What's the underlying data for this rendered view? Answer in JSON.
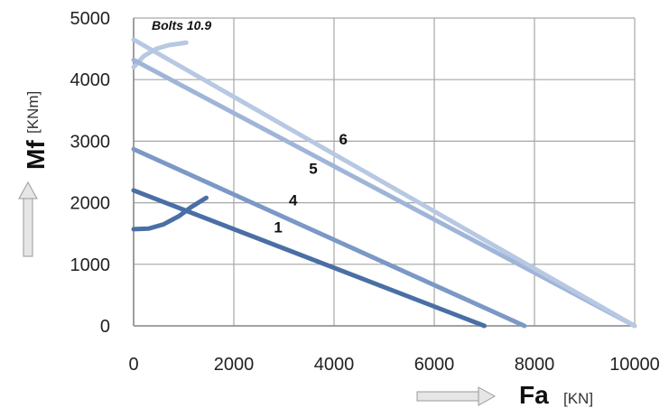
{
  "chart_data": {
    "type": "line",
    "xlabel": "Fa",
    "xlabel_unit": "[KN]",
    "ylabel": "Mf",
    "ylabel_unit": "[KNm]",
    "xlim": [
      0,
      10000
    ],
    "ylim": [
      0,
      5000
    ],
    "x_ticks": [
      "0",
      "2000",
      "4000",
      "6000",
      "8000",
      "10000"
    ],
    "y_ticks": [
      "0",
      "1000",
      "2000",
      "3000",
      "4000",
      "5000"
    ],
    "grid": true,
    "annotation": "Bolts 10.9",
    "colors": {
      "s1": "#4a6fa5",
      "s4": "#7b98c6",
      "s5": "#9fb5d8",
      "s6": "#b7c8e3",
      "grid": "#a6a6a6",
      "axis": "#8a8a8a",
      "arrow": "#c8c8c8"
    },
    "series": [
      {
        "name": "1",
        "color_key": "s1",
        "x": [
          0,
          7000
        ],
        "y": [
          2200,
          0
        ],
        "label_at": [
          2800,
          1520
        ]
      },
      {
        "name": "4",
        "color_key": "s4",
        "x": [
          0,
          7800
        ],
        "y": [
          2870,
          0
        ],
        "label_at": [
          3100,
          1960
        ]
      },
      {
        "name": "5",
        "color_key": "s5",
        "x": [
          0,
          10000
        ],
        "y": [
          4320,
          0
        ],
        "label_at": [
          3500,
          2470
        ]
      },
      {
        "name": "6",
        "color_key": "s6",
        "x": [
          0,
          10000
        ],
        "y": [
          4650,
          0
        ],
        "label_at": [
          4100,
          2950
        ]
      }
    ],
    "curves": [
      {
        "color_key": "s1",
        "x": [
          0,
          300,
          600,
          900,
          1150,
          1450
        ],
        "y": [
          1570,
          1580,
          1650,
          1780,
          1930,
          2080
        ]
      },
      {
        "color_key": "s6",
        "x": [
          0,
          200,
          450,
          700,
          1050
        ],
        "y": [
          4200,
          4380,
          4500,
          4560,
          4600
        ]
      }
    ]
  }
}
